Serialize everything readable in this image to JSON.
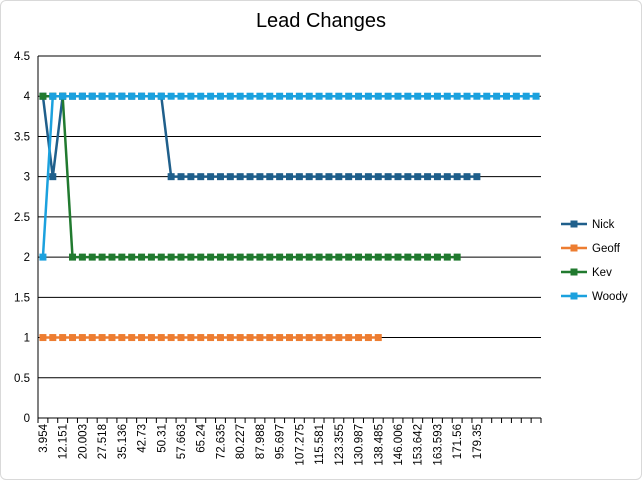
{
  "chart_data": {
    "type": "line",
    "title": "Lead Changes",
    "xlabel": "",
    "ylabel": "",
    "ylim": [
      0,
      4.5
    ],
    "ystep": 0.5,
    "grid": true,
    "legend_position": "right",
    "x_tick_labels": [
      "3.954",
      "12.151",
      "20.003",
      "27.518",
      "35.136",
      "42.73",
      "50.31",
      "57.663",
      "65.24",
      "72.635",
      "80.227",
      "87.988",
      "95.697",
      "107.275",
      "115.581",
      "123.355",
      "130.987",
      "138.485",
      "146.006",
      "153.642",
      "163.593",
      "171.56",
      "179.35"
    ],
    "y_tick_labels": [
      "0",
      "0.5",
      "1",
      "1.5",
      "2",
      "2.5",
      "3",
      "3.5",
      "4",
      "4.5"
    ],
    "series": [
      {
        "name": "Nick",
        "color": "#1f5f8b",
        "values": [
          4,
          3,
          4,
          4,
          4,
          4,
          4,
          4,
          4,
          4,
          4,
          4,
          4,
          3,
          3,
          3,
          3,
          3,
          3,
          3,
          3,
          3,
          3,
          3,
          3,
          3,
          3,
          3,
          3,
          3,
          3,
          3,
          3,
          3,
          3,
          3,
          3,
          3,
          3,
          3,
          3,
          3,
          3,
          3,
          3
        ]
      },
      {
        "name": "Geoff",
        "color": "#ed7d31",
        "values": [
          1,
          1,
          1,
          1,
          1,
          1,
          1,
          1,
          1,
          1,
          1,
          1,
          1,
          1,
          1,
          1,
          1,
          1,
          1,
          1,
          1,
          1,
          1,
          1,
          1,
          1,
          1,
          1,
          1,
          1,
          1,
          1,
          1,
          1,
          1
        ]
      },
      {
        "name": "Kev",
        "color": "#217a2f",
        "values": [
          4,
          4,
          4,
          2,
          2,
          2,
          2,
          2,
          2,
          2,
          2,
          2,
          2,
          2,
          2,
          2,
          2,
          2,
          2,
          2,
          2,
          2,
          2,
          2,
          2,
          2,
          2,
          2,
          2,
          2,
          2,
          2,
          2,
          2,
          2,
          2,
          2,
          2,
          2,
          2,
          2,
          2,
          2
        ]
      },
      {
        "name": "Woody",
        "color": "#1ba1de",
        "values": [
          2,
          4,
          4,
          4,
          4,
          4,
          4,
          4,
          4,
          4,
          4,
          4,
          4,
          4,
          4,
          4,
          4,
          4,
          4,
          4,
          4,
          4,
          4,
          4,
          4,
          4,
          4,
          4,
          4,
          4,
          4,
          4,
          4,
          4,
          4,
          4,
          4,
          4,
          4,
          4,
          4,
          4,
          4,
          4,
          4,
          4,
          4,
          4,
          4,
          4,
          4
        ]
      }
    ]
  }
}
